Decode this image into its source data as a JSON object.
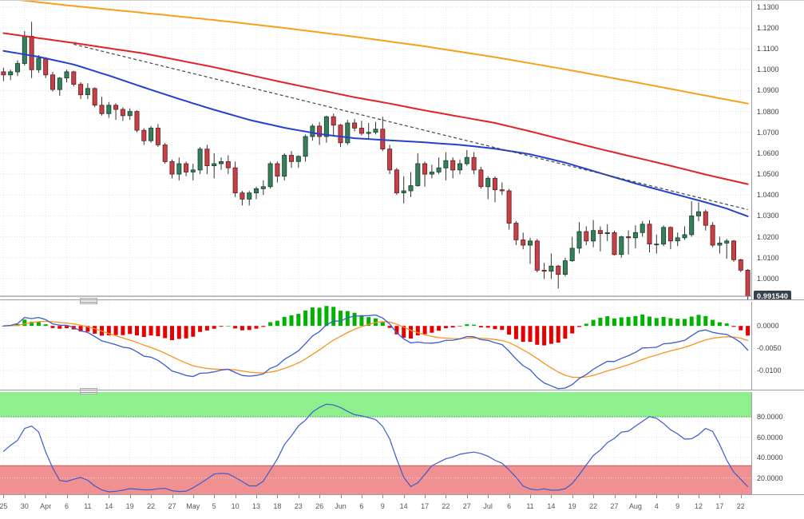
{
  "chart_data": {
    "type": "candlestick",
    "title": "",
    "x_ticks_every": 3,
    "x_tick_labels": [
      "25",
      "30",
      "Apr",
      "6",
      "11",
      "14",
      "19",
      "22",
      "27",
      "May",
      "5",
      "10",
      "13",
      "18",
      "23",
      "26",
      "Jun",
      "6",
      "9",
      "14",
      "17",
      "22",
      "27",
      "Jul",
      "6",
      "11",
      "14",
      "19",
      "22",
      "27",
      "Aug",
      "4",
      "9",
      "12",
      "17",
      "22"
    ],
    "candles": [
      [
        1.099,
        1.101,
        1.0945,
        1.0975
      ],
      [
        1.0975,
        1.1,
        1.095,
        1.099
      ],
      [
        1.099,
        1.1045,
        1.097,
        1.103
      ],
      [
        1.103,
        1.1185,
        1.102,
        1.116
      ],
      [
        1.116,
        1.123,
        1.096,
        1.1
      ],
      [
        1.1,
        1.107,
        1.0985,
        1.1055
      ],
      [
        1.1055,
        1.106,
        1.096,
        1.0975
      ],
      [
        1.0975,
        1.099,
        1.0895,
        1.0905
      ],
      [
        1.0905,
        1.0965,
        1.0875,
        1.096
      ],
      [
        1.096,
        1.1,
        1.094,
        1.099
      ],
      [
        1.099,
        1.0995,
        1.092,
        1.093
      ],
      [
        1.093,
        1.094,
        1.086,
        1.088
      ],
      [
        1.088,
        1.0935,
        1.086,
        1.091
      ],
      [
        1.091,
        1.0915,
        1.082,
        1.083
      ],
      [
        1.083,
        1.087,
        1.078,
        1.079
      ],
      [
        1.079,
        1.0845,
        1.077,
        1.083
      ],
      [
        1.083,
        1.084,
        1.076,
        1.081
      ],
      [
        1.081,
        1.082,
        1.0755,
        1.078
      ],
      [
        1.078,
        1.0815,
        1.076,
        1.08
      ],
      [
        1.08,
        1.0805,
        1.07,
        1.071
      ],
      [
        1.071,
        1.072,
        1.064,
        1.066
      ],
      [
        1.066,
        1.073,
        1.065,
        1.072
      ],
      [
        1.072,
        1.074,
        1.063,
        1.064
      ],
      [
        1.064,
        1.065,
        1.055,
        1.056
      ],
      [
        1.056,
        1.057,
        1.048,
        1.05
      ],
      [
        1.05,
        1.058,
        1.047,
        1.055
      ],
      [
        1.055,
        1.056,
        1.049,
        1.051
      ],
      [
        1.051,
        1.055,
        1.047,
        1.052
      ],
      [
        1.052,
        1.063,
        1.05,
        1.062
      ],
      [
        1.062,
        1.064,
        1.05,
        1.054
      ],
      [
        1.054,
        1.06,
        1.048,
        1.055
      ],
      [
        1.055,
        1.058,
        1.052,
        1.056
      ],
      [
        1.056,
        1.059,
        1.05,
        1.053
      ],
      [
        1.053,
        1.056,
        1.039,
        1.041
      ],
      [
        1.041,
        1.042,
        1.035,
        1.038
      ],
      [
        1.038,
        1.042,
        1.035,
        1.041
      ],
      [
        1.041,
        1.044,
        1.038,
        1.043
      ],
      [
        1.043,
        1.047,
        1.04,
        1.044
      ],
      [
        1.044,
        1.056,
        1.043,
        1.055
      ],
      [
        1.055,
        1.056,
        1.046,
        1.049
      ],
      [
        1.049,
        1.06,
        1.047,
        1.059
      ],
      [
        1.059,
        1.061,
        1.053,
        1.056
      ],
      [
        1.056,
        1.059,
        1.053,
        1.0585
      ],
      [
        1.0585,
        1.069,
        1.056,
        1.068
      ],
      [
        1.068,
        1.074,
        1.066,
        1.073
      ],
      [
        1.073,
        1.075,
        1.064,
        1.068
      ],
      [
        1.068,
        1.078,
        1.065,
        1.0775
      ],
      [
        1.0775,
        1.079,
        1.068,
        1.0735
      ],
      [
        1.0735,
        1.074,
        1.063,
        1.065
      ],
      [
        1.065,
        1.076,
        1.064,
        1.0745
      ],
      [
        1.0745,
        1.0765,
        1.0705,
        1.072
      ],
      [
        1.072,
        1.0755,
        1.0685,
        1.0695
      ],
      [
        1.0695,
        1.0745,
        1.0665,
        1.07
      ],
      [
        1.07,
        1.075,
        1.069,
        1.0715
      ],
      [
        1.0715,
        1.0775,
        1.061,
        1.062
      ],
      [
        1.062,
        1.064,
        1.05,
        1.052
      ],
      [
        1.052,
        1.053,
        1.04,
        1.041
      ],
      [
        1.041,
        1.049,
        1.036,
        1.042
      ],
      [
        1.042,
        1.051,
        1.039,
        1.0445
      ],
      [
        1.0445,
        1.06,
        1.044,
        1.055
      ],
      [
        1.055,
        1.056,
        1.044,
        1.05
      ],
      [
        1.05,
        1.0545,
        1.048,
        1.051
      ],
      [
        1.051,
        1.058,
        1.05,
        1.053
      ],
      [
        1.053,
        1.0605,
        1.047,
        1.0565
      ],
      [
        1.0565,
        1.058,
        1.048,
        1.052
      ],
      [
        1.052,
        1.057,
        1.05,
        1.055
      ],
      [
        1.055,
        1.0615,
        1.054,
        1.058
      ],
      [
        1.058,
        1.0605,
        1.05,
        1.052
      ],
      [
        1.052,
        1.0535,
        1.043,
        1.044
      ],
      [
        1.044,
        1.049,
        1.038,
        1.048
      ],
      [
        1.048,
        1.049,
        1.0365,
        1.0425
      ],
      [
        1.0425,
        1.046,
        1.04,
        1.042
      ],
      [
        1.042,
        1.043,
        1.0235,
        1.0265
      ],
      [
        1.0265,
        1.0275,
        1.016,
        1.0185
      ],
      [
        1.0185,
        1.022,
        1.014,
        1.016
      ],
      [
        1.016,
        1.0195,
        1.007,
        1.018
      ],
      [
        1.018,
        1.019,
        1.003,
        1.004
      ],
      [
        1.004,
        1.0075,
        0.9998,
        1.0035
      ],
      [
        1.0035,
        1.012,
        0.9998,
        1.006
      ],
      [
        1.006,
        1.0065,
        0.9952,
        1.002
      ],
      [
        1.002,
        1.01,
        1.001,
        1.0085
      ],
      [
        1.0085,
        1.02,
        1.008,
        1.0145
      ],
      [
        1.0145,
        1.027,
        1.012,
        1.0225
      ],
      [
        1.0225,
        1.025,
        1.016,
        1.018
      ],
      [
        1.018,
        1.028,
        1.015,
        1.023
      ],
      [
        1.023,
        1.025,
        1.013,
        1.0215
      ],
      [
        1.0215,
        1.026,
        1.018,
        1.022
      ],
      [
        1.022,
        1.023,
        1.011,
        1.0115
      ],
      [
        1.0115,
        1.0205,
        1.01,
        1.02
      ],
      [
        1.02,
        1.023,
        1.0115,
        1.0195
      ],
      [
        1.0195,
        1.0255,
        1.0145,
        1.022
      ],
      [
        1.022,
        1.0275,
        1.02,
        1.026
      ],
      [
        1.026,
        1.028,
        1.0125,
        1.0165
      ],
      [
        1.0165,
        1.021,
        1.012,
        1.0165
      ],
      [
        1.0165,
        1.0255,
        1.0155,
        1.0245
      ],
      [
        1.0245,
        1.025,
        1.014,
        1.018
      ],
      [
        1.018,
        1.022,
        1.0155,
        1.0195
      ],
      [
        1.0195,
        1.025,
        1.0185,
        1.021
      ],
      [
        1.021,
        1.037,
        1.02,
        1.03
      ],
      [
        1.03,
        1.0365,
        1.0275,
        1.032
      ],
      [
        1.032,
        1.033,
        1.023,
        1.0255
      ],
      [
        1.0255,
        1.027,
        1.015,
        1.016
      ],
      [
        1.016,
        1.02,
        1.012,
        1.017
      ],
      [
        1.017,
        1.019,
        1.0095,
        1.018
      ],
      [
        1.018,
        1.0185,
        1.008,
        1.009
      ],
      [
        1.009,
        1.0095,
        1.003,
        1.004
      ],
      [
        1.004,
        1.0045,
        0.99,
        0.9915
      ]
    ],
    "main": {
      "ylim": [
        0.99,
        1.133
      ],
      "y_ticks": [
        {
          "label": "1.1300",
          "value": 1.13
        },
        {
          "label": "1.1200",
          "value": 1.12
        },
        {
          "label": "1.1100",
          "value": 1.11
        },
        {
          "label": "1.1000",
          "value": 1.1
        },
        {
          "label": "1.0900",
          "value": 1.09
        },
        {
          "label": "1.0800",
          "value": 1.08
        },
        {
          "label": "1.0700",
          "value": 1.07
        },
        {
          "label": "1.0600",
          "value": 1.06
        },
        {
          "label": "1.0500",
          "value": 1.05
        },
        {
          "label": "1.0400",
          "value": 1.04
        },
        {
          "label": "1.0300",
          "value": 1.03
        },
        {
          "label": "1.0200",
          "value": 1.02
        },
        {
          "label": "1.0100",
          "value": 1.01
        },
        {
          "label": "1.0000",
          "value": 1.0
        }
      ],
      "current_price": 0.99154,
      "current_price_label": "0.991540",
      "current_price_line_color": "#76828e",
      "bull_color": "#357f5b",
      "bear_color": "#c64046",
      "overlays": [
        {
          "name": "ma-long-orange",
          "color": "#f6a01b",
          "anchors": [
            [
              0,
              1.1342
            ],
            [
              10,
              1.1305
            ],
            [
              20,
              1.1272
            ],
            [
              30,
              1.1238
            ],
            [
              40,
              1.12
            ],
            [
              50,
              1.1158
            ],
            [
              60,
              1.1112
            ],
            [
              70,
              1.106
            ],
            [
              80,
              1.1002
            ],
            [
              90,
              1.094
            ],
            [
              100,
              1.0876
            ],
            [
              106,
              1.0838
            ]
          ]
        },
        {
          "name": "ma-mid-red",
          "color": "#e32227",
          "anchors": [
            [
              0,
              1.1175
            ],
            [
              10,
              1.1128
            ],
            [
              20,
              1.1078
            ],
            [
              30,
              1.1012
            ],
            [
              40,
              1.0938
            ],
            [
              50,
              1.0868
            ],
            [
              55,
              1.0838
            ],
            [
              60,
              1.0805
            ],
            [
              65,
              1.0775
            ],
            [
              70,
              1.0745
            ],
            [
              75,
              1.0705
            ],
            [
              80,
              1.0662
            ],
            [
              85,
              1.062
            ],
            [
              90,
              1.058
            ],
            [
              95,
              1.054
            ],
            [
              100,
              1.0498
            ],
            [
              106,
              1.0452
            ]
          ]
        },
        {
          "name": "ma-short-blue",
          "color": "#2440cf",
          "anchors": [
            [
              0,
              1.109
            ],
            [
              5,
              1.1062
            ],
            [
              10,
              1.1025
            ],
            [
              15,
              1.0972
            ],
            [
              20,
              1.0915
            ],
            [
              25,
              1.086
            ],
            [
              30,
              1.0808
            ],
            [
              35,
              1.076
            ],
            [
              40,
              1.0722
            ],
            [
              45,
              1.0692
            ],
            [
              50,
              1.0672
            ],
            [
              55,
              1.0662
            ],
            [
              60,
              1.0652
            ],
            [
              65,
              1.064
            ],
            [
              70,
              1.0622
            ],
            [
              75,
              1.0595
            ],
            [
              80,
              1.0555
            ],
            [
              85,
              1.0505
            ],
            [
              90,
              1.0455
            ],
            [
              95,
              1.041
            ],
            [
              100,
              1.0365
            ],
            [
              103,
              1.0335
            ],
            [
              106,
              1.0298
            ]
          ]
        }
      ],
      "trendline": {
        "color": "#444444",
        "style": "dashed",
        "points": [
          [
            10,
            1.1122
          ],
          [
            106,
            1.033
          ]
        ]
      }
    },
    "macd": {
      "params": [
        12,
        26,
        9
      ],
      "ylim": [
        -0.0143,
        0.0054
      ],
      "y_ticks": [
        {
          "label": "0.0000",
          "value": 0
        },
        {
          "label": "-0.0050",
          "value": -0.005
        },
        {
          "label": "-0.0100",
          "value": -0.01
        }
      ],
      "hist_up_color": "#00b300",
      "hist_down_color": "#e60000",
      "macd_color": "#3b5bd0",
      "signal_color": "#f79420"
    },
    "stochastic": {
      "params": [
        14,
        3,
        3
      ],
      "ylim": [
        4,
        104.3
      ],
      "y_ticks": [
        {
          "label": "80.0000",
          "value": 80
        },
        {
          "label": "60.0000",
          "value": 60
        },
        {
          "label": "40.0000",
          "value": 40
        },
        {
          "label": "20.0000",
          "value": 20
        }
      ],
      "zones": [
        {
          "name": "overbought",
          "from": 80,
          "to": 104.3,
          "color": "#8df08d",
          "border": "#4ab24a"
        },
        {
          "name": "oversold",
          "from": 4,
          "to": 32,
          "color": "#f09090",
          "border": "#c05c5c"
        }
      ],
      "line_color": "#3b5bd0"
    }
  }
}
